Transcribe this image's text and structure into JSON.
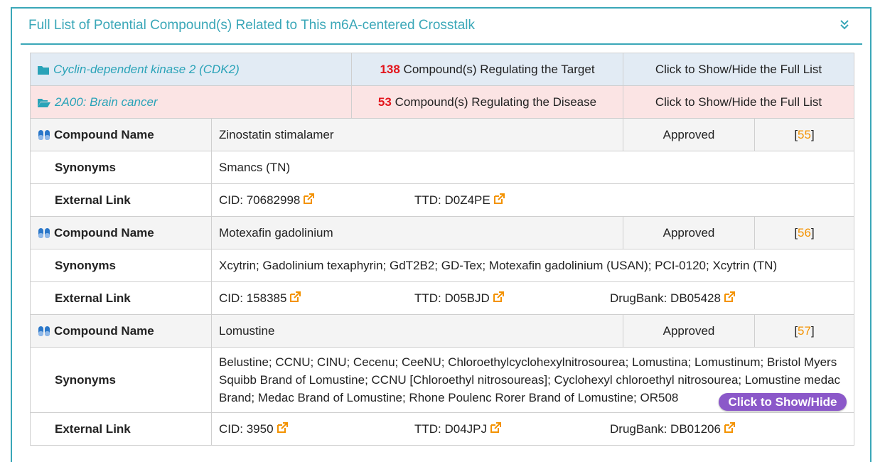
{
  "panel": {
    "title": "Full List of Potential Compound(s) Related to This m6A-centered Crosstalk"
  },
  "target_row": {
    "label": "Cyclin-dependent kinase 2 (CDK2)",
    "count": "138",
    "count_text": "Compound(s) Regulating the Target",
    "toggle": "Click to Show/Hide the Full List"
  },
  "disease_row": {
    "label": "2A00: Brain cancer",
    "count": "53",
    "count_text": "Compound(s) Regulating the Disease",
    "toggle": "Click to Show/Hide the Full List"
  },
  "labels": {
    "compound_name": "Compound Name",
    "synonyms": "Synonyms",
    "external_link": "External Link"
  },
  "compounds": [
    {
      "name": "Zinostatin stimalamer",
      "status": "Approved",
      "ref_open": "[",
      "ref": "55",
      "ref_close": "]",
      "synonyms": "Smancs (TN)",
      "cid": "CID: 70682998",
      "ttd": "TTD: D0Z4PE",
      "drugbank": ""
    },
    {
      "name": "Motexafin gadolinium",
      "status": "Approved",
      "ref_open": "[",
      "ref": "56",
      "ref_close": "]",
      "synonyms": "Xcytrin; Gadolinium texaphyrin; GdT2B2; GD-Tex; Motexafin gadolinium (USAN); PCI-0120; Xcytrin (TN)",
      "cid": "CID: 158385",
      "ttd": "TTD: D05BJD",
      "drugbank": "DrugBank: DB05428"
    },
    {
      "name": "Lomustine",
      "status": "Approved",
      "ref_open": "[",
      "ref": "57",
      "ref_close": "]",
      "synonyms": "Belustine; CCNU; CINU; Cecenu; CeeNU; Chloroethylcyclohexylnitrosourea; Lomustina; Lomustinum; Bristol Myers Squibb Brand of Lomustine; CCNU [Chloroethyl nitrosoureas]; Cyclohexyl chloroethyl nitrosourea; Lomustine medac Brand; Medac Brand of Lomustine; Rhone Poulenc Rorer Brand of Lomustine; OR508",
      "cid": "CID: 3950",
      "ttd": "TTD: D04JPJ",
      "drugbank": "DrugBank: DB01206"
    }
  ],
  "show_hide_button": "Click to Show/Hide",
  "colors": {
    "accent": "#3aa7b8",
    "count_red": "#e3141b",
    "ref_orange": "#f39200",
    "button_purple": "#8b58c9"
  }
}
